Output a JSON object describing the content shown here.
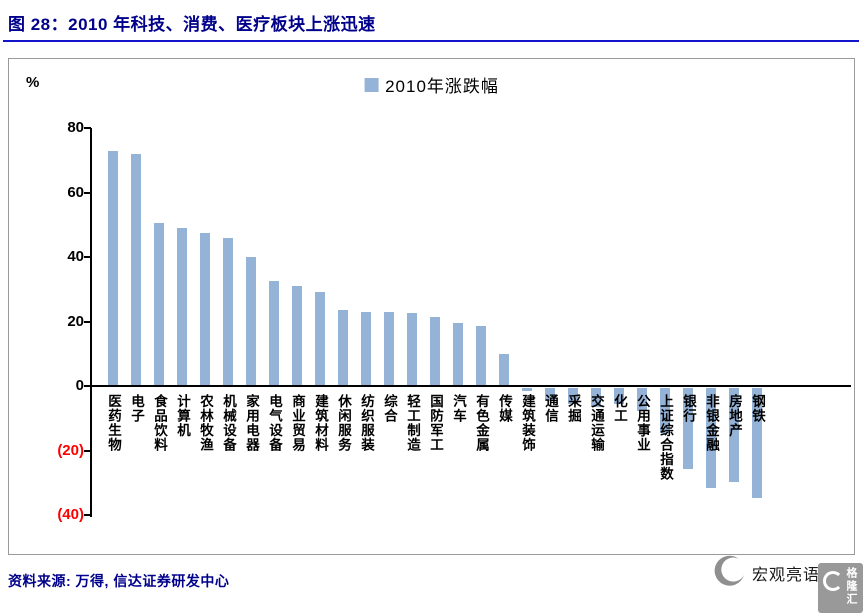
{
  "figure": {
    "title": "图 28：2010 年科技、消费、医疗板块上涨迅速",
    "source": "资料来源: 万得, 信达证券研发中心",
    "watermark_text": "宏观亮语",
    "logo_text": "格隆汇"
  },
  "chart_data": {
    "type": "bar",
    "legend_label": "2010年涨跌幅",
    "series_name": "2010年涨跌幅",
    "ylabel": "%",
    "ylim": [
      -40,
      80
    ],
    "ytick_values": [
      80,
      60,
      40,
      20,
      0,
      -20,
      -40
    ],
    "ytick_labels": [
      "80",
      "60",
      "40",
      "20",
      "0",
      "(20)",
      "(40)"
    ],
    "grid": false,
    "legend_position": "top-center",
    "bar_color": "#95B3D7",
    "negative_axis_label_color": "#FF0000",
    "categories": [
      "医药生物",
      "电子",
      "食品饮料",
      "计算机",
      "农林牧渔",
      "机械设备",
      "家用电器",
      "电气设备",
      "商业贸易",
      "建筑材料",
      "休闲服务",
      "纺织服装",
      "综合",
      "轻工制造",
      "国防军工",
      "汽车",
      "有色金属",
      "传媒",
      "建筑装饰",
      "通信",
      "采掘",
      "交通运输",
      "化工",
      "公用事业",
      "上证综合指数",
      "银行",
      "非银金融",
      "房地产",
      "钢铁"
    ],
    "values": [
      73,
      72,
      50.5,
      49,
      47.5,
      46,
      40,
      32.5,
      31,
      29,
      23.5,
      23,
      23,
      22.5,
      21.5,
      19.5,
      18.5,
      10,
      -1,
      -4,
      -5,
      -6,
      -5,
      -7,
      -14,
      -25,
      -31,
      -29,
      -34
    ]
  }
}
